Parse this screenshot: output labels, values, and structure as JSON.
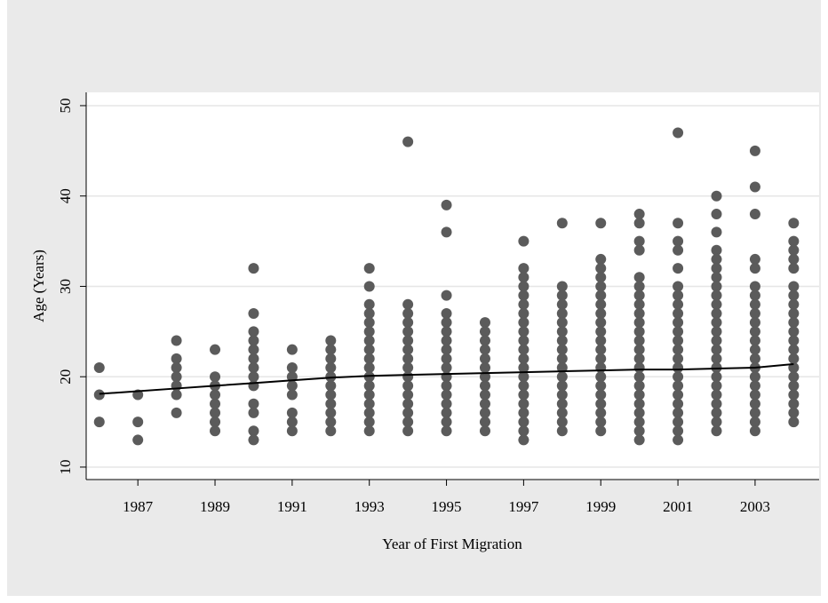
{
  "chart_data": {
    "type": "scatter",
    "x_label": "Year of First Migration",
    "y_label": "Age (Years)",
    "xlim": [
      1985.66,
      2004.66
    ],
    "xticks": [
      1987,
      1989,
      1991,
      1993,
      1995,
      1997,
      1999,
      2001,
      2003
    ],
    "ylim": [
      8.62,
      51.47
    ],
    "yticks": [
      10,
      20,
      30,
      40,
      50
    ],
    "grid": true,
    "series": [
      {
        "type": "scatter",
        "color": "#5b5b5b",
        "x": [
          1986,
          1986,
          1986,
          1987,
          1987,
          1987,
          1988,
          1988,
          1988,
          1988,
          1988,
          1988,
          1988,
          1989,
          1989,
          1989,
          1989,
          1989,
          1989,
          1989,
          1989,
          1990,
          1990,
          1990,
          1990,
          1990,
          1990,
          1990,
          1990,
          1990,
          1990,
          1990,
          1990,
          1990,
          1991,
          1991,
          1991,
          1991,
          1991,
          1991,
          1991,
          1991,
          1992,
          1992,
          1992,
          1992,
          1992,
          1992,
          1992,
          1992,
          1992,
          1992,
          1992,
          1993,
          1993,
          1993,
          1993,
          1993,
          1993,
          1993,
          1993,
          1993,
          1993,
          1993,
          1993,
          1993,
          1993,
          1993,
          1993,
          1993,
          1994,
          1994,
          1994,
          1994,
          1994,
          1994,
          1994,
          1994,
          1994,
          1994,
          1994,
          1994,
          1994,
          1994,
          1994,
          1994,
          1995,
          1995,
          1995,
          1995,
          1995,
          1995,
          1995,
          1995,
          1995,
          1995,
          1995,
          1995,
          1995,
          1995,
          1995,
          1995,
          1995,
          1996,
          1996,
          1996,
          1996,
          1996,
          1996,
          1996,
          1996,
          1996,
          1996,
          1996,
          1996,
          1996,
          1997,
          1997,
          1997,
          1997,
          1997,
          1997,
          1997,
          1997,
          1997,
          1997,
          1997,
          1997,
          1997,
          1997,
          1997,
          1997,
          1997,
          1997,
          1997,
          1997,
          1997,
          1998,
          1998,
          1998,
          1998,
          1998,
          1998,
          1998,
          1998,
          1998,
          1998,
          1998,
          1998,
          1998,
          1998,
          1998,
          1998,
          1998,
          1998,
          1999,
          1999,
          1999,
          1999,
          1999,
          1999,
          1999,
          1999,
          1999,
          1999,
          1999,
          1999,
          1999,
          1999,
          1999,
          1999,
          1999,
          1999,
          1999,
          1999,
          1999,
          2000,
          2000,
          2000,
          2000,
          2000,
          2000,
          2000,
          2000,
          2000,
          2000,
          2000,
          2000,
          2000,
          2000,
          2000,
          2000,
          2000,
          2000,
          2000,
          2000,
          2000,
          2000,
          2000,
          2001,
          2001,
          2001,
          2001,
          2001,
          2001,
          2001,
          2001,
          2001,
          2001,
          2001,
          2001,
          2001,
          2001,
          2001,
          2001,
          2001,
          2001,
          2001,
          2001,
          2001,
          2001,
          2001,
          2002,
          2002,
          2002,
          2002,
          2002,
          2002,
          2002,
          2002,
          2002,
          2002,
          2002,
          2002,
          2002,
          2002,
          2002,
          2002,
          2002,
          2002,
          2002,
          2002,
          2002,
          2002,
          2002,
          2002,
          2003,
          2003,
          2003,
          2003,
          2003,
          2003,
          2003,
          2003,
          2003,
          2003,
          2003,
          2003,
          2003,
          2003,
          2003,
          2003,
          2003,
          2003,
          2003,
          2003,
          2003,
          2003,
          2004,
          2004,
          2004,
          2004,
          2004,
          2004,
          2004,
          2004,
          2004,
          2004,
          2004,
          2004,
          2004,
          2004,
          2004,
          2004,
          2004,
          2004,
          2004,
          2004,
          2004
        ],
        "values": [
          21,
          18,
          15,
          18,
          15,
          13,
          24,
          22,
          21,
          20,
          19,
          18,
          16,
          23,
          20,
          19,
          18,
          17,
          16,
          15,
          14,
          32,
          27,
          25,
          24,
          23,
          22,
          21,
          20,
          19,
          17,
          16,
          14,
          13,
          23,
          21,
          20,
          19,
          18,
          16,
          15,
          14,
          24,
          23,
          22,
          21,
          20,
          19,
          18,
          17,
          16,
          15,
          14,
          32,
          30,
          28,
          27,
          26,
          25,
          24,
          23,
          22,
          21,
          20,
          19,
          18,
          17,
          16,
          15,
          14,
          46,
          28,
          27,
          26,
          25,
          24,
          23,
          22,
          21,
          20,
          19,
          18,
          17,
          16,
          15,
          14,
          39,
          36,
          29,
          27,
          26,
          25,
          24,
          23,
          22,
          21,
          20,
          19,
          18,
          17,
          16,
          15,
          14,
          26,
          25,
          24,
          23,
          22,
          21,
          20,
          19,
          18,
          17,
          16,
          15,
          14,
          35,
          32,
          31,
          30,
          29,
          28,
          27,
          26,
          25,
          24,
          23,
          22,
          21,
          20,
          19,
          18,
          17,
          16,
          15,
          14,
          13,
          37,
          30,
          29,
          28,
          27,
          26,
          25,
          24,
          23,
          22,
          21,
          20,
          19,
          18,
          17,
          16,
          15,
          14,
          37,
          33,
          32,
          31,
          30,
          29,
          28,
          27,
          26,
          25,
          24,
          23,
          22,
          21,
          20,
          19,
          18,
          17,
          16,
          15,
          14,
          38,
          37,
          35,
          34,
          31,
          30,
          29,
          28,
          27,
          26,
          25,
          24,
          23,
          22,
          21,
          20,
          19,
          18,
          17,
          16,
          15,
          14,
          13,
          47,
          37,
          35,
          34,
          32,
          30,
          29,
          28,
          27,
          26,
          25,
          24,
          23,
          22,
          21,
          20,
          19,
          18,
          17,
          16,
          15,
          14,
          13,
          40,
          38,
          36,
          34,
          33,
          32,
          31,
          30,
          29,
          28,
          27,
          26,
          25,
          24,
          23,
          22,
          21,
          20,
          19,
          18,
          17,
          16,
          15,
          14,
          45,
          41,
          38,
          33,
          32,
          30,
          29,
          28,
          27,
          26,
          25,
          24,
          23,
          22,
          21,
          20,
          19,
          18,
          17,
          16,
          15,
          14,
          37,
          35,
          34,
          33,
          32,
          30,
          29,
          28,
          27,
          26,
          25,
          24,
          23,
          22,
          21,
          20,
          19,
          18,
          17,
          16,
          15
        ]
      },
      {
        "type": "line",
        "color": "#000000",
        "x": [
          1986,
          1987,
          1988,
          1989,
          1990,
          1991,
          1992,
          1993,
          1994,
          1995,
          1996,
          1997,
          1998,
          1999,
          2000,
          2001,
          2002,
          2003,
          2004
        ],
        "values": [
          18.1,
          18.4,
          18.7,
          19.0,
          19.3,
          19.6,
          19.9,
          20.1,
          20.2,
          20.3,
          20.4,
          20.5,
          20.6,
          20.7,
          20.8,
          20.8,
          20.9,
          21.0,
          21.4
        ]
      }
    ]
  }
}
